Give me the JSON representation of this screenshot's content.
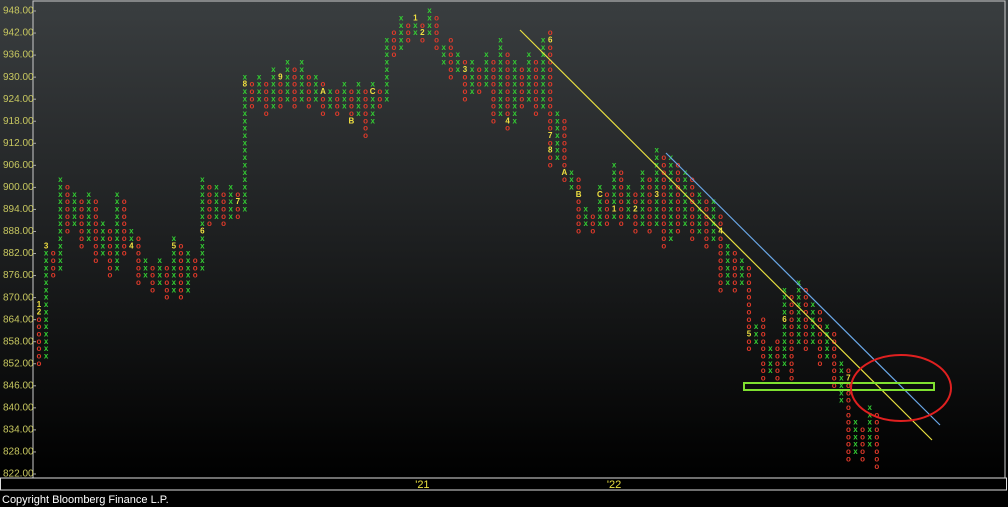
{
  "chart_data": {
    "type": "point-figure",
    "box_size": 2,
    "ylim": [
      822,
      948
    ],
    "yticks": [
      {
        "value": 822,
        "label": "822.00"
      },
      {
        "value": 828,
        "label": "828.00"
      },
      {
        "value": 834,
        "label": "834.00"
      },
      {
        "value": 840,
        "label": "840.00"
      },
      {
        "value": 846,
        "label": "846.00"
      },
      {
        "value": 852,
        "label": "852.00"
      },
      {
        "value": 858,
        "label": "858.00"
      },
      {
        "value": 864,
        "label": "864.00"
      },
      {
        "value": 870,
        "label": "870.00"
      },
      {
        "value": 876,
        "label": "876.00"
      },
      {
        "value": 882,
        "label": "882.00"
      },
      {
        "value": 888,
        "label": "888.00"
      },
      {
        "value": 894,
        "label": "894.00"
      },
      {
        "value": 900,
        "label": "900.00"
      },
      {
        "value": 906,
        "label": "906.00"
      },
      {
        "value": 912,
        "label": "912.00"
      },
      {
        "value": 918,
        "label": "918.00"
      },
      {
        "value": 924,
        "label": "924.00"
      },
      {
        "value": 930,
        "label": "930.00"
      },
      {
        "value": 936,
        "label": "936.00"
      },
      {
        "value": 942,
        "label": "942.00"
      },
      {
        "value": 948,
        "label": "948.00"
      }
    ],
    "colors": {
      "x": "#33cc33",
      "o": "#e03a2a",
      "mark": "#f0e040"
    },
    "columns": [
      {
        "symbol": "o",
        "low": 852,
        "high": 868
      },
      {
        "symbol": "x",
        "low": 854,
        "high": 884
      },
      {
        "symbol": "o",
        "low": 876,
        "high": 882
      },
      {
        "symbol": "x",
        "low": 878,
        "high": 902
      },
      {
        "symbol": "o",
        "low": 888,
        "high": 900
      },
      {
        "symbol": "x",
        "low": 890,
        "high": 898
      },
      {
        "symbol": "o",
        "low": 884,
        "high": 896
      },
      {
        "symbol": "x",
        "low": 886,
        "high": 898
      },
      {
        "symbol": "o",
        "low": 880,
        "high": 896
      },
      {
        "symbol": "x",
        "low": 882,
        "high": 890
      },
      {
        "symbol": "o",
        "low": 876,
        "high": 888
      },
      {
        "symbol": "x",
        "low": 878,
        "high": 898
      },
      {
        "symbol": "o",
        "low": 882,
        "high": 896
      },
      {
        "symbol": "x",
        "low": 884,
        "high": 888
      },
      {
        "symbol": "o",
        "low": 874,
        "high": 886
      },
      {
        "symbol": "x",
        "low": 876,
        "high": 880
      },
      {
        "symbol": "o",
        "low": 872,
        "high": 878
      },
      {
        "symbol": "x",
        "low": 874,
        "high": 880
      },
      {
        "symbol": "o",
        "low": 870,
        "high": 878
      },
      {
        "symbol": "x",
        "low": 872,
        "high": 886
      },
      {
        "symbol": "o",
        "low": 870,
        "high": 884
      },
      {
        "symbol": "x",
        "low": 872,
        "high": 882
      },
      {
        "symbol": "o",
        "low": 876,
        "high": 880
      },
      {
        "symbol": "x",
        "low": 878,
        "high": 902
      },
      {
        "symbol": "o",
        "low": 890,
        "high": 900
      },
      {
        "symbol": "x",
        "low": 892,
        "high": 900
      },
      {
        "symbol": "o",
        "low": 890,
        "high": 898
      },
      {
        "symbol": "x",
        "low": 892,
        "high": 900
      },
      {
        "symbol": "o",
        "low": 892,
        "high": 898
      },
      {
        "symbol": "x",
        "low": 894,
        "high": 930
      },
      {
        "symbol": "o",
        "low": 922,
        "high": 928
      },
      {
        "symbol": "x",
        "low": 924,
        "high": 930
      },
      {
        "symbol": "o",
        "low": 920,
        "high": 928
      },
      {
        "symbol": "x",
        "low": 922,
        "high": 932
      },
      {
        "symbol": "o",
        "low": 922,
        "high": 930
      },
      {
        "symbol": "x",
        "low": 924,
        "high": 934
      },
      {
        "symbol": "o",
        "low": 922,
        "high": 932
      },
      {
        "symbol": "x",
        "low": 924,
        "high": 934
      },
      {
        "symbol": "o",
        "low": 922,
        "high": 930
      },
      {
        "symbol": "x",
        "low": 924,
        "high": 930
      },
      {
        "symbol": "o",
        "low": 920,
        "high": 928
      },
      {
        "symbol": "x",
        "low": 922,
        "high": 926
      },
      {
        "symbol": "o",
        "low": 920,
        "high": 926
      },
      {
        "symbol": "x",
        "low": 922,
        "high": 928
      },
      {
        "symbol": "o",
        "low": 918,
        "high": 926
      },
      {
        "symbol": "x",
        "low": 920,
        "high": 928
      },
      {
        "symbol": "o",
        "low": 914,
        "high": 926
      },
      {
        "symbol": "x",
        "low": 918,
        "high": 928
      },
      {
        "symbol": "o",
        "low": 922,
        "high": 926
      },
      {
        "symbol": "x",
        "low": 924,
        "high": 940
      },
      {
        "symbol": "o",
        "low": 936,
        "high": 942
      },
      {
        "symbol": "x",
        "low": 938,
        "high": 946
      },
      {
        "symbol": "o",
        "low": 940,
        "high": 944
      },
      {
        "symbol": "x",
        "low": 942,
        "high": 946
      },
      {
        "symbol": "o",
        "low": 940,
        "high": 944
      },
      {
        "symbol": "x",
        "low": 942,
        "high": 948
      },
      {
        "symbol": "o",
        "low": 938,
        "high": 946
      },
      {
        "symbol": "x",
        "low": 934,
        "high": 938
      },
      {
        "symbol": "o",
        "low": 930,
        "high": 940
      },
      {
        "symbol": "x",
        "low": 932,
        "high": 936
      },
      {
        "symbol": "o",
        "low": 924,
        "high": 934
      },
      {
        "symbol": "x",
        "low": 926,
        "high": 934
      },
      {
        "symbol": "o",
        "low": 926,
        "high": 932
      },
      {
        "symbol": "x",
        "low": 928,
        "high": 936
      },
      {
        "symbol": "o",
        "low": 918,
        "high": 934
      },
      {
        "symbol": "x",
        "low": 920,
        "high": 940
      },
      {
        "symbol": "o",
        "low": 916,
        "high": 936
      },
      {
        "symbol": "x",
        "low": 918,
        "high": 934
      },
      {
        "symbol": "o",
        "low": 922,
        "high": 932
      },
      {
        "symbol": "x",
        "low": 924,
        "high": 936
      },
      {
        "symbol": "o",
        "low": 920,
        "high": 934
      },
      {
        "symbol": "x",
        "low": 922,
        "high": 940
      },
      {
        "symbol": "o",
        "low": 906,
        "high": 942
      },
      {
        "symbol": "x",
        "low": 908,
        "high": 920
      },
      {
        "symbol": "o",
        "low": 902,
        "high": 918
      },
      {
        "symbol": "x",
        "low": 900,
        "high": 904
      },
      {
        "symbol": "o",
        "low": 888,
        "high": 902
      },
      {
        "symbol": "x",
        "low": 890,
        "high": 894
      },
      {
        "symbol": "o",
        "low": 888,
        "high": 892
      },
      {
        "symbol": "x",
        "low": 890,
        "high": 900
      },
      {
        "symbol": "o",
        "low": 890,
        "high": 898
      },
      {
        "symbol": "x",
        "low": 892,
        "high": 906
      },
      {
        "symbol": "o",
        "low": 890,
        "high": 904
      },
      {
        "symbol": "x",
        "low": 892,
        "high": 900
      },
      {
        "symbol": "o",
        "low": 888,
        "high": 898
      },
      {
        "symbol": "x",
        "low": 890,
        "high": 904
      },
      {
        "symbol": "o",
        "low": 888,
        "high": 902
      },
      {
        "symbol": "x",
        "low": 890,
        "high": 910
      },
      {
        "symbol": "o",
        "low": 884,
        "high": 908
      },
      {
        "symbol": "x",
        "low": 886,
        "high": 908
      },
      {
        "symbol": "o",
        "low": 888,
        "high": 906
      },
      {
        "symbol": "x",
        "low": 890,
        "high": 904
      },
      {
        "symbol": "o",
        "low": 886,
        "high": 902
      },
      {
        "symbol": "x",
        "low": 888,
        "high": 898
      },
      {
        "symbol": "o",
        "low": 884,
        "high": 896
      },
      {
        "symbol": "x",
        "low": 886,
        "high": 896
      },
      {
        "symbol": "o",
        "low": 872,
        "high": 892
      },
      {
        "symbol": "x",
        "low": 874,
        "high": 884
      },
      {
        "symbol": "o",
        "low": 872,
        "high": 882
      },
      {
        "symbol": "x",
        "low": 874,
        "high": 880
      },
      {
        "symbol": "o",
        "low": 856,
        "high": 878
      },
      {
        "symbol": "x",
        "low": 858,
        "high": 862
      },
      {
        "symbol": "o",
        "low": 848,
        "high": 864
      },
      {
        "symbol": "x",
        "low": 850,
        "high": 856
      },
      {
        "symbol": "o",
        "low": 848,
        "high": 858
      },
      {
        "symbol": "x",
        "low": 852,
        "high": 872
      },
      {
        "symbol": "o",
        "low": 848,
        "high": 870
      },
      {
        "symbol": "x",
        "low": 858,
        "high": 874
      },
      {
        "symbol": "o",
        "low": 856,
        "high": 872
      },
      {
        "symbol": "x",
        "low": 858,
        "high": 868
      },
      {
        "symbol": "o",
        "low": 852,
        "high": 866
      },
      {
        "symbol": "x",
        "low": 854,
        "high": 862
      },
      {
        "symbol": "o",
        "low": 846,
        "high": 860
      },
      {
        "symbol": "x",
        "low": 842,
        "high": 852
      },
      {
        "symbol": "o",
        "low": 826,
        "high": 850
      },
      {
        "symbol": "x",
        "low": 828,
        "high": 836
      },
      {
        "symbol": "o",
        "low": 826,
        "high": 834
      },
      {
        "symbol": "x",
        "low": 830,
        "high": 840
      },
      {
        "symbol": "o",
        "low": 824,
        "high": 838
      }
    ],
    "month_marks": [
      {
        "column": 0,
        "value": 868,
        "label": "1"
      },
      {
        "column": 0,
        "value": 866,
        "label": "2"
      },
      {
        "column": 1,
        "value": 884,
        "label": "3"
      },
      {
        "column": 13,
        "value": 884,
        "label": "4"
      },
      {
        "column": 19,
        "value": 884,
        "label": "5"
      },
      {
        "column": 23,
        "value": 888,
        "label": "6"
      },
      {
        "column": 28,
        "value": 896,
        "label": "7"
      },
      {
        "column": 29,
        "value": 928,
        "label": "8"
      },
      {
        "column": 34,
        "value": 930,
        "label": "9"
      },
      {
        "column": 40,
        "value": 926,
        "label": "A"
      },
      {
        "column": 44,
        "value": 918,
        "label": "B"
      },
      {
        "column": 47,
        "value": 926,
        "label": "C"
      },
      {
        "column": 53,
        "value": 946,
        "label": "1"
      },
      {
        "column": 54,
        "value": 942,
        "label": "2"
      },
      {
        "column": 60,
        "value": 932,
        "label": "3"
      },
      {
        "column": 66,
        "value": 918,
        "label": "4"
      },
      {
        "column": 72,
        "value": 940,
        "label": "6"
      },
      {
        "column": 72,
        "value": 914,
        "label": "7"
      },
      {
        "column": 72,
        "value": 910,
        "label": "8"
      },
      {
        "column": 74,
        "value": 904,
        "label": "A"
      },
      {
        "column": 76,
        "value": 898,
        "label": "B"
      },
      {
        "column": 79,
        "value": 898,
        "label": "C"
      },
      {
        "column": 81,
        "value": 894,
        "label": "1"
      },
      {
        "column": 84,
        "value": 894,
        "label": "2"
      },
      {
        "column": 87,
        "value": 898,
        "label": "3"
      },
      {
        "column": 96,
        "value": 888,
        "label": "4"
      },
      {
        "column": 100,
        "value": 860,
        "label": "5"
      },
      {
        "column": 105,
        "value": 864,
        "label": "6"
      },
      {
        "column": 114,
        "value": 848,
        "label": "7"
      }
    ],
    "x_labels": [
      {
        "column": 54,
        "label": "'21"
      },
      {
        "column": 81,
        "label": "'22"
      }
    ],
    "footer": "Copyright Bloomberg Finance L.P."
  }
}
